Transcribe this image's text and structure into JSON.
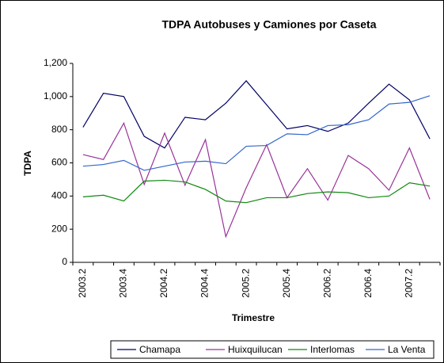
{
  "chart_data": {
    "type": "line",
    "title": "TDPA Autobuses y Camiones por Caseta",
    "x_label": "Trimestre",
    "y_label": "TDPA",
    "categories": [
      "2003.2",
      null,
      "2003.4",
      null,
      "2004.2",
      null,
      "2004.4",
      null,
      "2005.2",
      null,
      "2005.4",
      null,
      "2006.2",
      null,
      "2006.4",
      null,
      "2007.2",
      null
    ],
    "series": [
      {
        "name": "Chamapa",
        "color": "#000066",
        "values": [
          815,
          1020,
          1000,
          760,
          690,
          875,
          860,
          960,
          1095,
          950,
          805,
          825,
          790,
          840,
          960,
          1075,
          980,
          745
        ]
      },
      {
        "name": "Huixquilucan",
        "color": "#993399",
        "values": [
          650,
          620,
          840,
          470,
          780,
          465,
          740,
          155,
          450,
          710,
          390,
          565,
          375,
          645,
          565,
          435,
          690,
          380
        ]
      },
      {
        "name": "Interlomas",
        "color": "#118811",
        "values": [
          395,
          405,
          370,
          490,
          495,
          485,
          440,
          370,
          360,
          390,
          390,
          415,
          425,
          420,
          390,
          400,
          480,
          460
        ]
      },
      {
        "name": "La Venta",
        "color": "#3366cc",
        "values": [
          580,
          590,
          615,
          555,
          580,
          605,
          610,
          595,
          700,
          705,
          775,
          770,
          825,
          830,
          860,
          955,
          965,
          1005
        ]
      }
    ],
    "ylim": [
      0,
      1200
    ],
    "yticks": [
      0,
      200,
      400,
      600,
      800,
      {
        "value": 1000,
        "label": "1,000"
      },
      {
        "value": 1200,
        "label": "1,200"
      }
    ],
    "legend": "bottom"
  }
}
